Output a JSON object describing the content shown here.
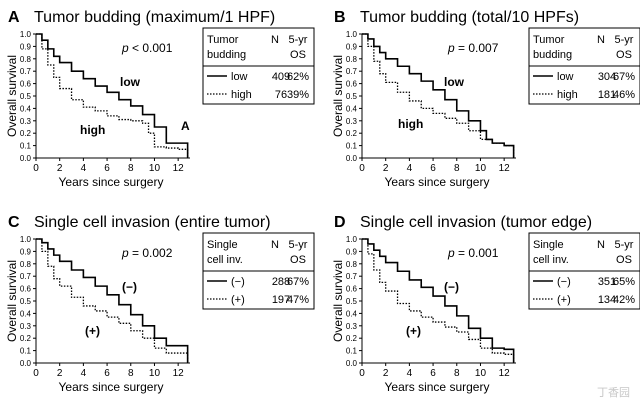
{
  "chart_data": [
    {
      "type": "line",
      "panel_letter": "A",
      "title": "Tumor budding (maximum/1 HPF)",
      "xlabel": "Years since surgery",
      "ylabel": "Overall survival",
      "xlim": [
        0,
        13
      ],
      "ylim": [
        0,
        1
      ],
      "x_ticks": [
        "0",
        "2",
        "4",
        "6",
        "8",
        "10",
        "12"
      ],
      "y_ticks": [
        "0.0",
        "0.1",
        "0.2",
        "0.3",
        "0.4",
        "0.5",
        "0.6",
        "0.7",
        "0.8",
        "0.9",
        "1.0"
      ],
      "p_label": "p",
      "p_value": "< 0.001",
      "annotation": "A",
      "table": {
        "head1": [
          "Tumor",
          "N",
          "5-yr"
        ],
        "head2": [
          "budding",
          "",
          "OS"
        ],
        "rows": [
          {
            "group": "low",
            "n": "409",
            "os": "62%"
          },
          {
            "group": "high",
            "n": "76",
            "os": "39%"
          }
        ]
      },
      "series": [
        {
          "group": "low",
          "line_label": "low",
          "style": "solid",
          "x": [
            0,
            0.5,
            1,
            1.5,
            2,
            3,
            4,
            5,
            6,
            7,
            8,
            9,
            10,
            11,
            12,
            12.8
          ],
          "y": [
            1.0,
            0.95,
            0.88,
            0.82,
            0.77,
            0.7,
            0.64,
            0.58,
            0.53,
            0.47,
            0.42,
            0.35,
            0.25,
            0.12,
            0.12,
            0.0
          ]
        },
        {
          "group": "high",
          "line_label": "high",
          "style": "dotted",
          "x": [
            0,
            0.5,
            1,
            1.5,
            2,
            3,
            4,
            5,
            6,
            7,
            8,
            9,
            9.5,
            10,
            11,
            12,
            12.8
          ],
          "y": [
            1.0,
            0.88,
            0.75,
            0.65,
            0.56,
            0.47,
            0.41,
            0.38,
            0.34,
            0.31,
            0.3,
            0.28,
            0.2,
            0.09,
            0.08,
            0.07,
            0.0
          ]
        }
      ]
    },
    {
      "type": "line",
      "panel_letter": "B",
      "title": "Tumor budding (total/10 HPFs)",
      "xlabel": "Years since surgery",
      "ylabel": "Overall survival",
      "xlim": [
        0,
        13
      ],
      "ylim": [
        0,
        1
      ],
      "x_ticks": [
        "0",
        "2",
        "4",
        "6",
        "8",
        "10",
        "12"
      ],
      "y_ticks": [
        "0.0",
        "0.1",
        "0.2",
        "0.3",
        "0.4",
        "0.5",
        "0.6",
        "0.7",
        "0.8",
        "0.9",
        "1.0"
      ],
      "p_label": "p",
      "p_value": "= 0.007",
      "annotation": "",
      "table": {
        "head1": [
          "Tumor",
          "N",
          "5-yr"
        ],
        "head2": [
          "budding",
          "",
          "OS"
        ],
        "rows": [
          {
            "group": "low",
            "n": "304",
            "os": "67%"
          },
          {
            "group": "high",
            "n": "181",
            "os": "46%"
          }
        ]
      },
      "series": [
        {
          "group": "low",
          "line_label": "low",
          "style": "solid",
          "x": [
            0,
            0.5,
            1,
            1.5,
            2,
            3,
            4,
            5,
            6,
            7,
            8,
            9,
            10,
            10.5,
            11,
            12,
            12.8
          ],
          "y": [
            1.0,
            0.96,
            0.9,
            0.85,
            0.8,
            0.74,
            0.68,
            0.62,
            0.55,
            0.47,
            0.38,
            0.3,
            0.22,
            0.15,
            0.12,
            0.1,
            0.0
          ]
        },
        {
          "group": "high",
          "line_label": "high",
          "style": "dotted",
          "x": [
            0,
            0.5,
            1,
            1.5,
            2,
            3,
            4,
            5,
            6,
            7,
            8,
            9,
            10,
            11,
            12,
            12.8
          ],
          "y": [
            1.0,
            0.9,
            0.78,
            0.68,
            0.61,
            0.53,
            0.46,
            0.4,
            0.36,
            0.32,
            0.28,
            0.22,
            0.15,
            0.12,
            0.1,
            0.0
          ]
        }
      ]
    },
    {
      "type": "line",
      "panel_letter": "C",
      "title": "Single cell invasion (entire tumor)",
      "xlabel": "Years since surgery",
      "ylabel": "Overall survival",
      "xlim": [
        0,
        13
      ],
      "ylim": [
        0,
        1
      ],
      "x_ticks": [
        "0",
        "2",
        "4",
        "6",
        "8",
        "10",
        "12"
      ],
      "y_ticks": [
        "0.0",
        "0.1",
        "0.2",
        "0.3",
        "0.4",
        "0.5",
        "0.6",
        "0.7",
        "0.8",
        "0.9",
        "1.0"
      ],
      "p_label": "p",
      "p_value": "= 0.002",
      "annotation": "",
      "table": {
        "head1": [
          "Single",
          "N",
          "5-yr"
        ],
        "head2": [
          "cell inv.",
          "",
          "OS"
        ],
        "rows": [
          {
            "group": "(−)",
            "n": "288",
            "os": "67%"
          },
          {
            "group": "(+)",
            "n": "197",
            "os": "47%"
          }
        ]
      },
      "series": [
        {
          "group": "(−)",
          "line_label": "(−)",
          "style": "solid",
          "x": [
            0,
            0.5,
            1,
            1.5,
            2,
            3,
            4,
            5,
            6,
            7,
            8,
            9,
            10,
            11,
            12,
            12.8
          ],
          "y": [
            1.0,
            0.97,
            0.92,
            0.87,
            0.82,
            0.75,
            0.69,
            0.62,
            0.55,
            0.47,
            0.39,
            0.3,
            0.2,
            0.14,
            0.14,
            0.0
          ]
        },
        {
          "group": "(+)",
          "line_label": "(+)",
          "style": "dotted",
          "x": [
            0,
            0.5,
            1,
            1.5,
            2,
            3,
            4,
            5,
            6,
            7,
            8,
            9,
            10,
            11,
            12,
            12.8
          ],
          "y": [
            1.0,
            0.9,
            0.78,
            0.68,
            0.62,
            0.53,
            0.46,
            0.42,
            0.37,
            0.32,
            0.26,
            0.2,
            0.12,
            0.08,
            0.08,
            0.0
          ]
        }
      ]
    },
    {
      "type": "line",
      "panel_letter": "D",
      "title": "Single cell invasion (tumor edge)",
      "xlabel": "Years since surgery",
      "ylabel": "Overall survival",
      "xlim": [
        0,
        13
      ],
      "ylim": [
        0,
        1
      ],
      "x_ticks": [
        "0",
        "2",
        "4",
        "6",
        "8",
        "10",
        "12"
      ],
      "y_ticks": [
        "0.0",
        "0.1",
        "0.2",
        "0.3",
        "0.4",
        "0.5",
        "0.6",
        "0.7",
        "0.8",
        "0.9",
        "1.0"
      ],
      "p_label": "p",
      "p_value": "= 0.001",
      "annotation": "",
      "table": {
        "head1": [
          "Single",
          "N",
          "5-yr"
        ],
        "head2": [
          "cell inv.",
          "",
          "OS"
        ],
        "rows": [
          {
            "group": "(−)",
            "n": "351",
            "os": "65%"
          },
          {
            "group": "(+)",
            "n": "134",
            "os": "42%"
          }
        ]
      },
      "series": [
        {
          "group": "(−)",
          "line_label": "(−)",
          "style": "solid",
          "x": [
            0,
            0.5,
            1,
            1.5,
            2,
            3,
            4,
            5,
            6,
            7,
            8,
            9,
            10,
            11,
            12,
            12.8
          ],
          "y": [
            1.0,
            0.96,
            0.91,
            0.86,
            0.81,
            0.74,
            0.67,
            0.61,
            0.54,
            0.46,
            0.38,
            0.28,
            0.2,
            0.12,
            0.11,
            0.0
          ]
        },
        {
          "group": "(+)",
          "line_label": "(+)",
          "style": "dotted",
          "x": [
            0,
            0.5,
            1,
            1.5,
            2,
            3,
            4,
            5,
            6,
            7,
            8,
            9,
            10,
            11,
            12,
            12.8
          ],
          "y": [
            1.0,
            0.88,
            0.75,
            0.65,
            0.58,
            0.48,
            0.42,
            0.37,
            0.33,
            0.29,
            0.25,
            0.19,
            0.12,
            0.08,
            0.07,
            0.0
          ]
        }
      ]
    }
  ],
  "watermark": "丁香园"
}
